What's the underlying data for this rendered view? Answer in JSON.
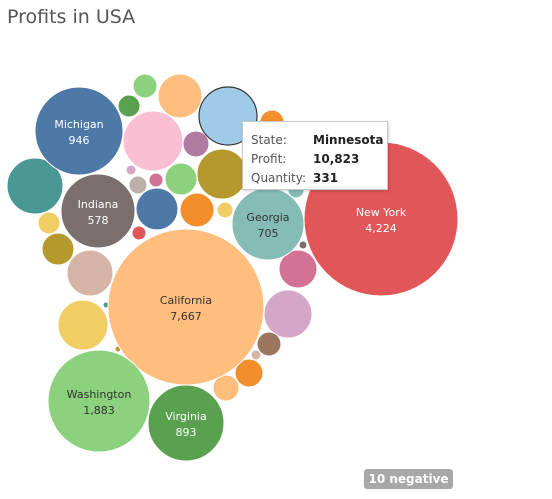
{
  "chart_data": {
    "type": "bubble",
    "title": "Profits in USA",
    "labeled_bubbles": [
      {
        "state": "California",
        "profit": "7,667",
        "color": "#ffbe7d"
      },
      {
        "state": "New York",
        "profit": "4,224",
        "color": "#e15759"
      },
      {
        "state": "Washington",
        "profit": "1,883",
        "color": "#8cd17d"
      },
      {
        "state": "Michigan",
        "profit": "946",
        "color": "#4e79a7"
      },
      {
        "state": "Virginia",
        "profit": "893",
        "color": "#59a14f"
      },
      {
        "state": "Georgia",
        "profit": "705",
        "color": "#86bcb6"
      },
      {
        "state": "Indiana",
        "profit": "578",
        "color": "#79706e"
      }
    ],
    "tooltip": {
      "state_label": "State:",
      "state": "Minnesota",
      "profit_label": "Profit:",
      "profit": "10,823",
      "quantity_label": "Quantity:",
      "quantity": "331"
    },
    "negative_badge": "10 negative"
  }
}
